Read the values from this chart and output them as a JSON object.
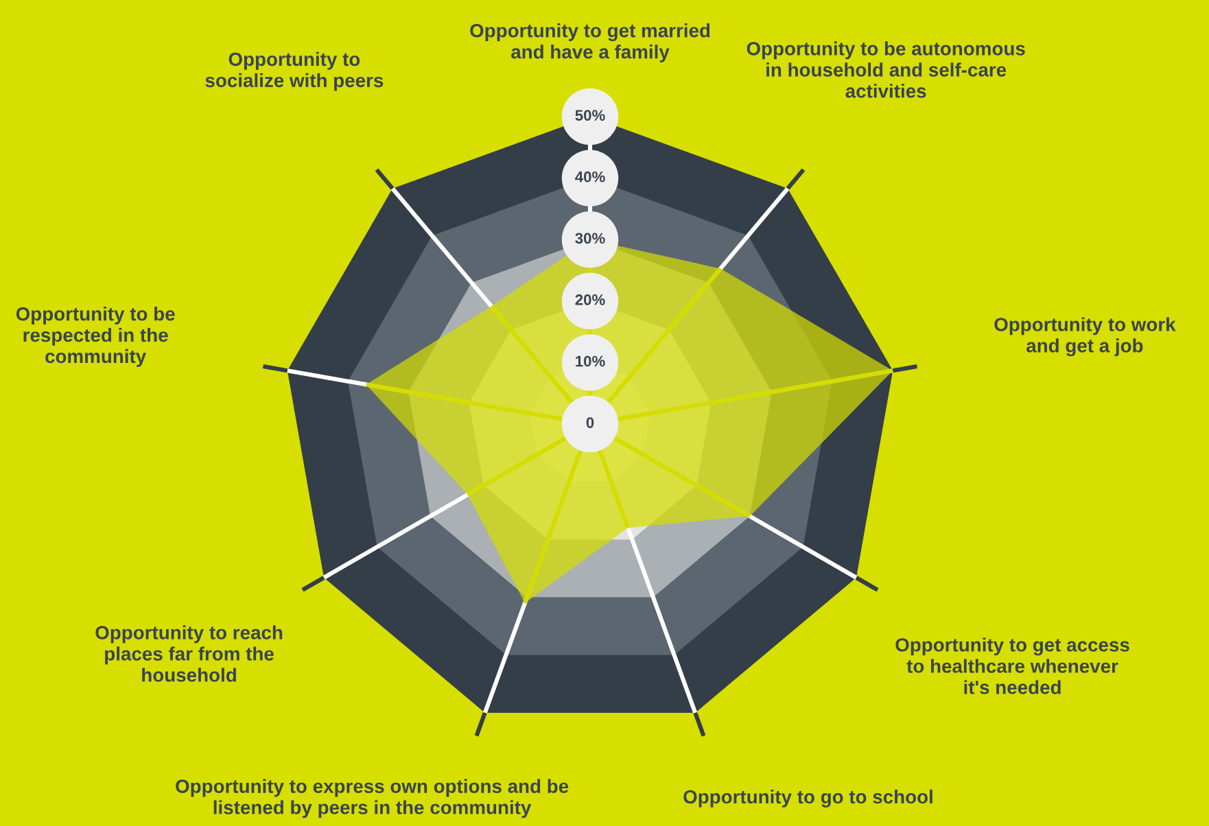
{
  "chart_data": {
    "type": "radar",
    "categories": [
      "Opportunity to get married\nand have a family",
      "Opportunity to be autonomous\nin household and self-care\nactivities",
      "Opportunity to work\nand get a job",
      "Opportunity to get access\nto healthcare whenever\nit's needed",
      "Opportunity to go to school",
      "Opportunity to express own options and be\nlistened by peers in the community",
      "Opportunity to reach\nplaces far from the\nhousehold",
      "Opportunity to be\nrespected in the\ncommunity",
      "Opportunity to\nsocialize with peers"
    ],
    "series": [
      {
        "color": "#d4dc00",
        "values": [
          30,
          33,
          50,
          30,
          18,
          31,
          23,
          37,
          25
        ]
      }
    ],
    "ylim": [
      0,
      50
    ],
    "yticks": [
      0,
      {
        "value": 10,
        "label": "10%"
      },
      {
        "value": 20,
        "label": "20%"
      },
      {
        "value": 30,
        "label": "30%"
      },
      {
        "value": 40,
        "label": "40%"
      },
      {
        "value": 50,
        "label": "50%"
      }
    ],
    "grid": true
  }
}
